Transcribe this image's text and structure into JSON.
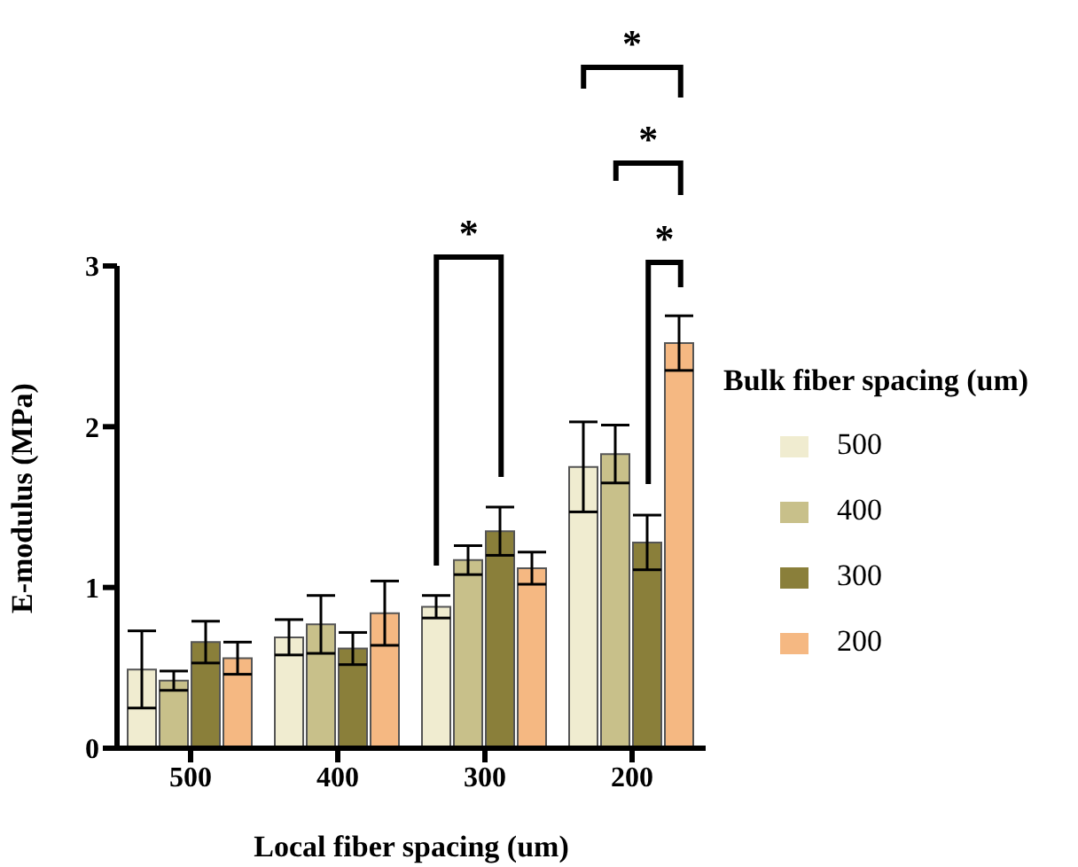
{
  "chart_data": {
    "type": "bar",
    "xlabel": "Local fiber spacing (um)",
    "ylabel": "E-modulus (MPa)",
    "legend_title": "Bulk fiber spacing (um)",
    "categories": [
      "500",
      "400",
      "300",
      "200"
    ],
    "series": [
      {
        "name": "500",
        "color": "#f0ecd0",
        "values": [
          0.49,
          0.69,
          0.88,
          1.75
        ],
        "errors": [
          0.24,
          0.11,
          0.07,
          0.28
        ]
      },
      {
        "name": "400",
        "color": "#c8c08a",
        "values": [
          0.42,
          0.77,
          1.17,
          1.83
        ],
        "errors": [
          0.06,
          0.18,
          0.09,
          0.18
        ]
      },
      {
        "name": "300",
        "color": "#8a7f3a",
        "values": [
          0.66,
          0.62,
          1.35,
          1.28
        ],
        "errors": [
          0.13,
          0.1,
          0.15,
          0.17
        ]
      },
      {
        "name": "200",
        "color": "#f5b882",
        "values": [
          0.56,
          0.84,
          1.12,
          2.52
        ],
        "errors": [
          0.1,
          0.2,
          0.1,
          0.17
        ]
      }
    ],
    "ylim": [
      0,
      3
    ],
    "yticks": [
      0,
      1,
      2,
      3
    ],
    "grid": false,
    "legend": "right",
    "annotations": [
      "*",
      "*",
      "*",
      "*"
    ]
  }
}
